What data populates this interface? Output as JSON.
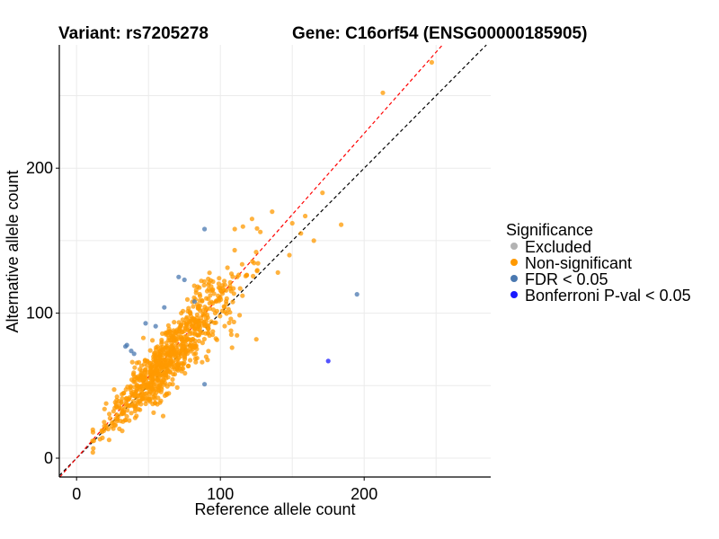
{
  "chart_data": {
    "type": "scatter",
    "title_left": "Variant: rs7205278",
    "title_right": "Gene: C16orf54 (ENSG00000185905)",
    "xlabel": "Reference allele count",
    "ylabel": "Alternative allele count",
    "xlim": [
      -12,
      288
    ],
    "ylim": [
      -13,
      285
    ],
    "x_ticks": [
      0,
      100,
      200
    ],
    "y_ticks": [
      0,
      100,
      200
    ],
    "grid": true,
    "legend": {
      "title": "Significance",
      "placement": "right",
      "entries": [
        {
          "label": "Excluded",
          "color": "#b3b3b3"
        },
        {
          "label": "Non-significant",
          "color": "#ff9900"
        },
        {
          "label": "FDR < 0.05",
          "color": "#4a78b0"
        },
        {
          "label": "Bonferroni P-val < 0.05",
          "color": "#1a1aff"
        }
      ]
    },
    "reference_lines": [
      {
        "slope": 1.0,
        "intercept": 0,
        "color": "#000000",
        "style": "dashed"
      },
      {
        "slope": 1.12,
        "intercept": 0,
        "color": "#ff0000",
        "style": "dashed"
      }
    ],
    "series": [
      {
        "name": "Non-significant",
        "color": "#ff9900",
        "outliers": [
          [
            247,
            273
          ],
          [
            213,
            252
          ],
          [
            171,
            183
          ],
          [
            184,
            161
          ],
          [
            159,
            167
          ],
          [
            156,
            155
          ],
          [
            165,
            150
          ],
          [
            150,
            162
          ],
          [
            136,
            170
          ],
          [
            122,
            165
          ],
          [
            110,
            158
          ],
          [
            125,
            82
          ],
          [
            12,
            12
          ],
          [
            18,
            14
          ],
          [
            22,
            20
          ],
          [
            28,
            30
          ],
          [
            148,
            140
          ],
          [
            140,
            128
          ]
        ],
        "cluster": {
          "count": 820,
          "x_center": 65,
          "x_sd": 22,
          "slope": 1.08,
          "spread": 11,
          "x_min": 10,
          "x_max": 130
        }
      },
      {
        "name": "FDR < 0.05",
        "color": "#4a78b0",
        "points": [
          [
            89,
            158
          ],
          [
            195,
            113
          ],
          [
            71,
            125
          ],
          [
            75,
            123
          ],
          [
            82,
            108
          ],
          [
            61,
            104
          ],
          [
            48,
            93
          ],
          [
            55,
            91
          ],
          [
            35,
            78
          ],
          [
            34,
            77
          ],
          [
            38,
            74
          ],
          [
            40,
            72
          ],
          [
            89,
            51
          ]
        ]
      },
      {
        "name": "Bonferroni P-val < 0.05",
        "color": "#1a1aff",
        "points": [
          [
            175,
            67
          ]
        ]
      }
    ]
  }
}
